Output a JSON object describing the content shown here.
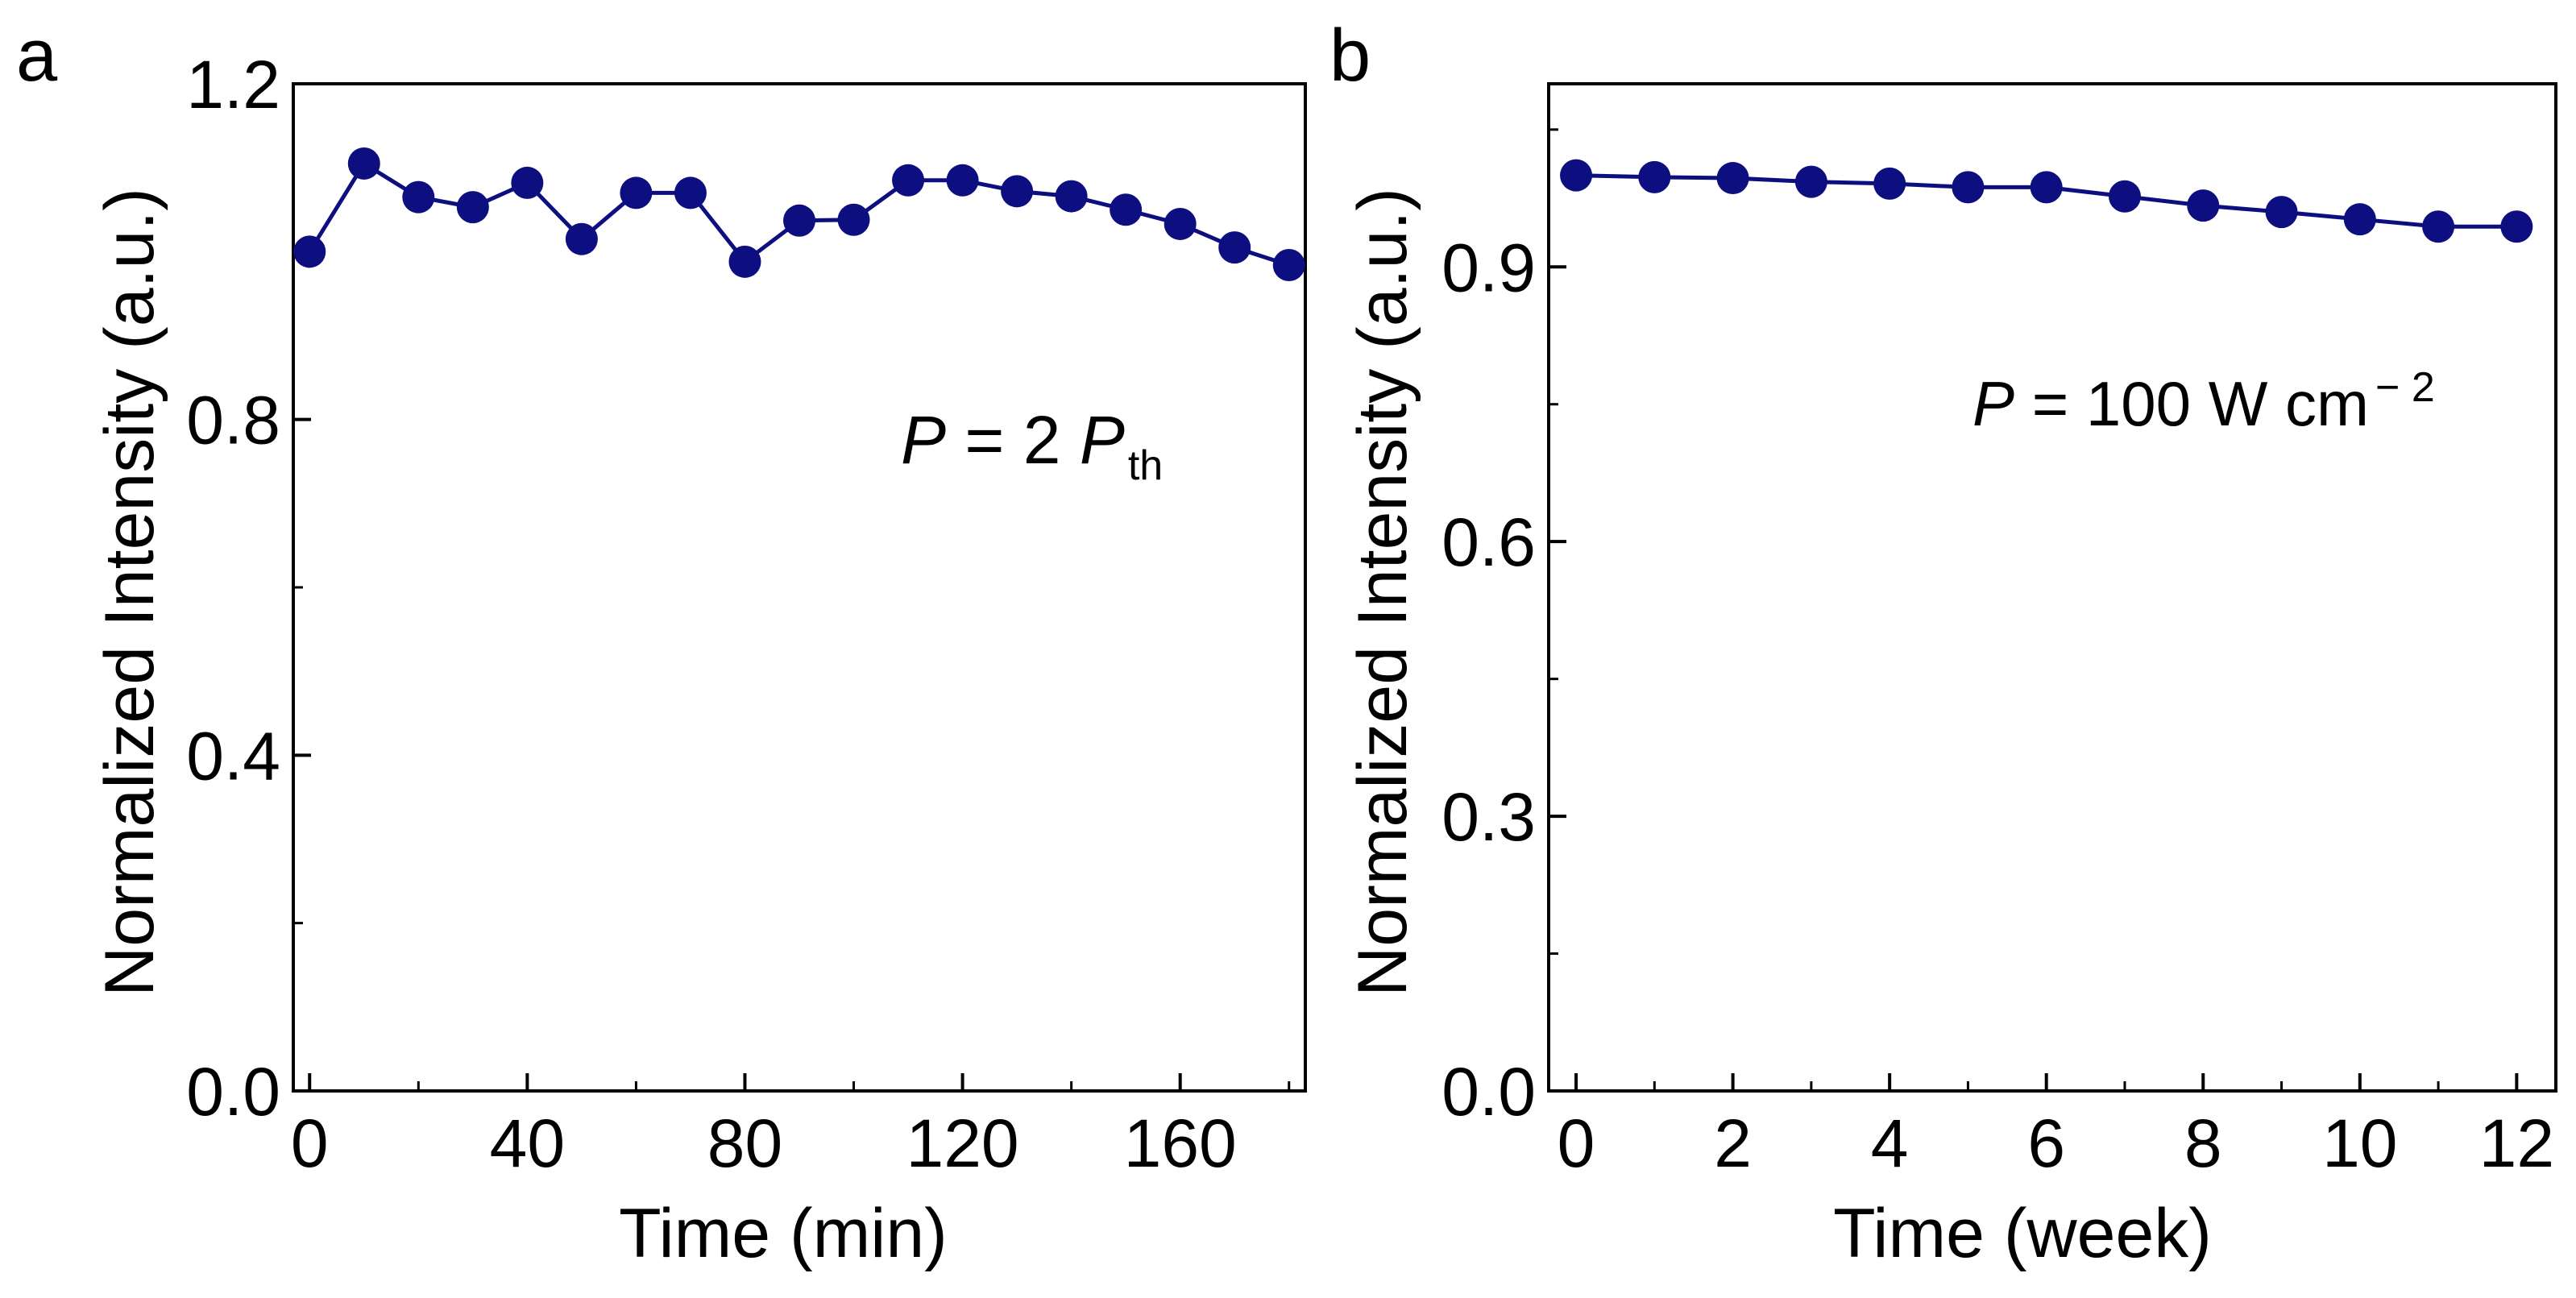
{
  "colors": {
    "series": "#0d0f80",
    "axis": "#000000",
    "background": "#ffffff"
  },
  "chart_data": [
    {
      "panel_label": "a",
      "type": "line",
      "xlabel": "Time (min)",
      "ylabel": "Normalized Intensity (a.u.)",
      "xlim": [
        -3,
        183
      ],
      "ylim": [
        0.0,
        1.2
      ],
      "xticks": [
        0,
        40,
        80,
        120,
        160
      ],
      "yticks": [
        0.0,
        0.4,
        0.8,
        1.2
      ],
      "xticks_minor": [
        20,
        60,
        100,
        140,
        180
      ],
      "yticks_minor": [
        0.2,
        0.6,
        1.0
      ],
      "tick_labels_x": [
        "0",
        "40",
        "80",
        "120",
        "160"
      ],
      "tick_labels_y": [
        "0.0",
        "0.4",
        "0.8",
        "1.2"
      ],
      "annotation": {
        "italic": "P",
        "text": " = 2 ",
        "italic2": "P",
        "subscript": "th"
      },
      "series": [
        {
          "name": "normalized intensity",
          "x": [
            0,
            10,
            20,
            30,
            40,
            50,
            60,
            70,
            80,
            90,
            100,
            110,
            120,
            130,
            140,
            150,
            160,
            170,
            180
          ],
          "values": [
            1.0,
            1.105,
            1.065,
            1.053,
            1.082,
            1.015,
            1.07,
            1.07,
            0.988,
            1.037,
            1.038,
            1.085,
            1.085,
            1.072,
            1.066,
            1.05,
            1.033,
            1.005,
            0.984
          ]
        }
      ]
    },
    {
      "panel_label": "b",
      "type": "line",
      "xlabel": "Time (week)",
      "ylabel": "Normalized Intensity (a.u.)",
      "xlim": [
        -0.35,
        12.5
      ],
      "ylim": [
        0.0,
        1.1
      ],
      "xticks": [
        0,
        2,
        4,
        6,
        8,
        10,
        12
      ],
      "yticks": [
        0.0,
        0.3,
        0.6,
        0.9
      ],
      "xticks_minor": [
        1,
        3,
        5,
        7,
        9,
        11
      ],
      "yticks_minor": [
        0.15,
        0.45,
        0.75,
        1.05
      ],
      "tick_labels_x": [
        "0",
        "2",
        "4",
        "6",
        "8",
        "10",
        "12"
      ],
      "tick_labels_y": [
        "0.0",
        "0.3",
        "0.6",
        "0.9"
      ],
      "annotation": {
        "italic": "P",
        "text": " = 100 W cm",
        "superscript": "− 2"
      },
      "series": [
        {
          "name": "normalized intensity",
          "x": [
            0,
            1,
            2,
            3,
            4,
            5,
            6,
            7,
            8,
            9,
            10,
            11,
            12
          ],
          "values": [
            1.0,
            0.998,
            0.997,
            0.993,
            0.991,
            0.987,
            0.987,
            0.977,
            0.967,
            0.96,
            0.952,
            0.944,
            0.944
          ]
        }
      ]
    }
  ]
}
